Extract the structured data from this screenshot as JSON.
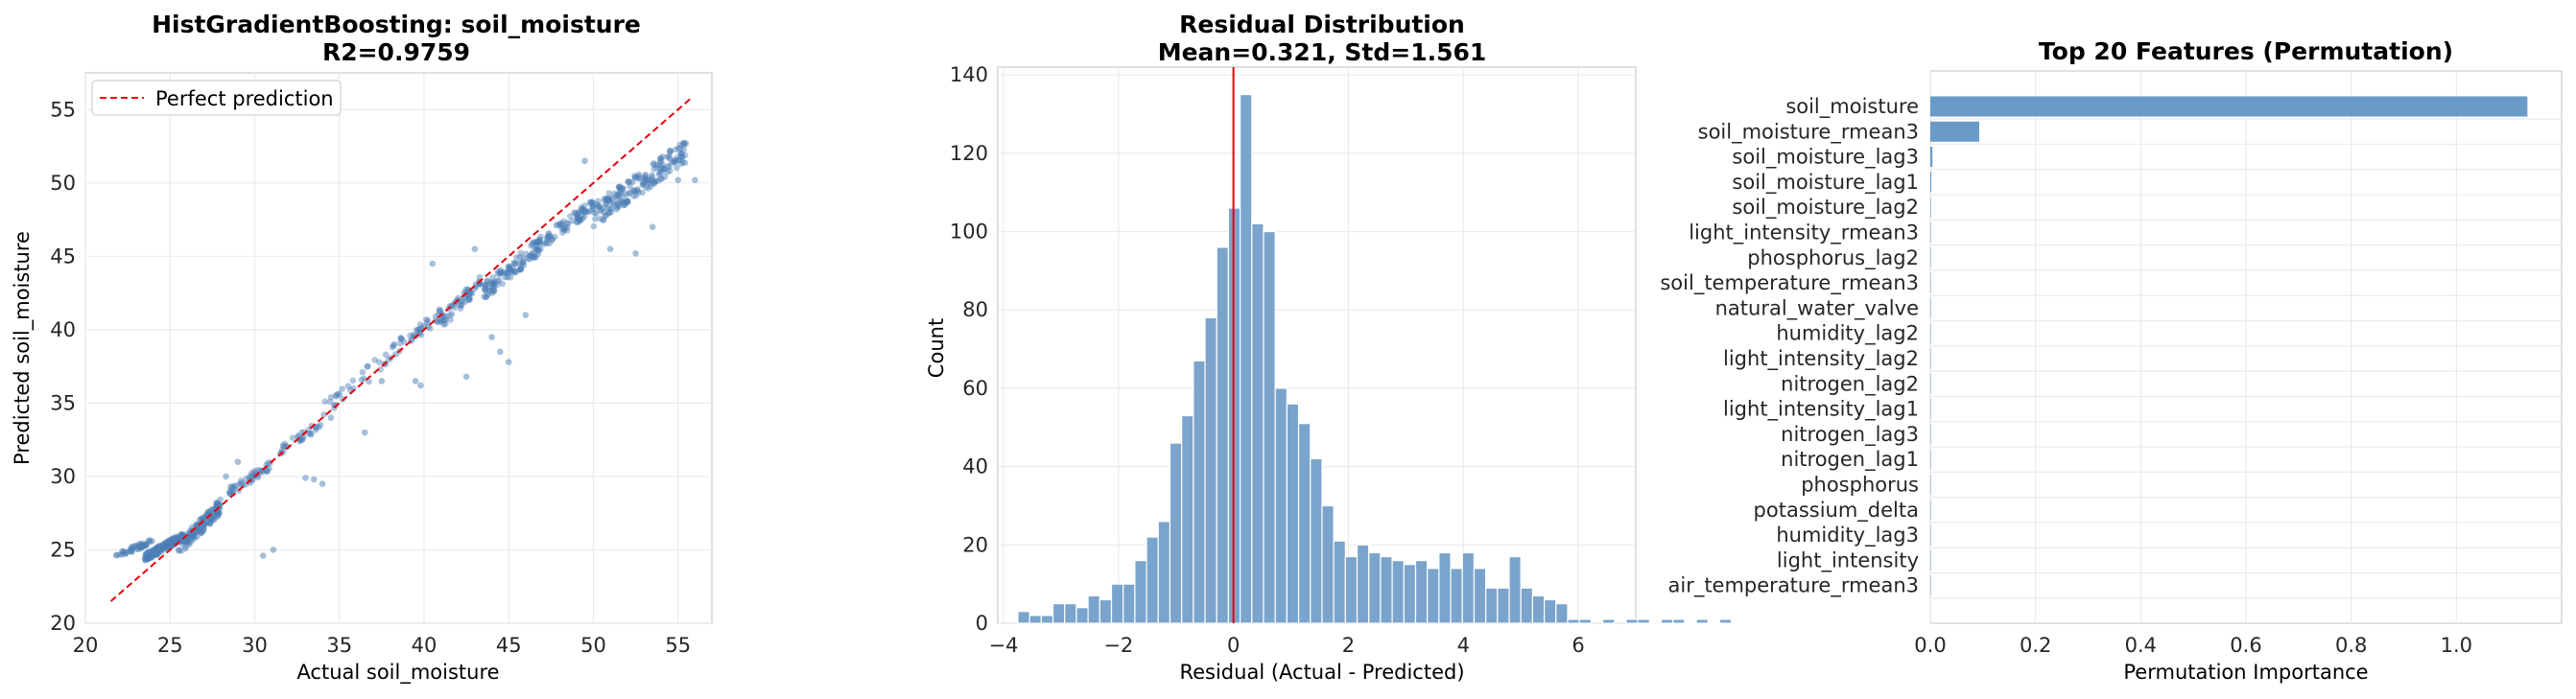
{
  "chart_data": [
    {
      "type": "scatter",
      "title": "HistGradientBoosting: soil_moisture\nR2=0.9759",
      "xlabel": "Actual soil_moisture",
      "ylabel": "Predicted soil_moisture",
      "xlim": [
        20,
        57
      ],
      "ylim": [
        20,
        57.5
      ],
      "xticks": [
        "20",
        "25",
        "30",
        "35",
        "40",
        "45",
        "50",
        "55"
      ],
      "yticks": [
        "20",
        "25",
        "30",
        "35",
        "40",
        "45",
        "50",
        "55"
      ],
      "grid": true,
      "legend": {
        "placement": "top-left",
        "entries": [
          "Perfect prediction"
        ]
      },
      "reference_line": {
        "name": "Perfect prediction",
        "from": [
          21.5,
          21.5
        ],
        "to": [
          55.8,
          55.8
        ],
        "style": "dashed",
        "color": "#e8000b"
      },
      "clusters": [
        {
          "x": [
            21.8,
            24.0
          ],
          "y": [
            24.4,
            25.8
          ],
          "n": 45
        },
        {
          "x": [
            23.5,
            25.8
          ],
          "y": [
            24.2,
            26.2
          ],
          "n": 160
        },
        {
          "x": [
            25.5,
            28.0
          ],
          "y": [
            24.6,
            28.5
          ],
          "n": 130
        },
        {
          "x": [
            28.5,
            31.0
          ],
          "y": [
            28.6,
            31.2
          ],
          "n": 45
        },
        {
          "x": [
            31.5,
            34.0
          ],
          "y": [
            31.5,
            34.0
          ],
          "n": 30
        },
        {
          "x": [
            34.0,
            38.0
          ],
          "y": [
            34.0,
            38.8
          ],
          "n": 30
        },
        {
          "x": [
            38.0,
            41.0
          ],
          "y": [
            38.0,
            41.5
          ],
          "n": 40
        },
        {
          "x": [
            41.0,
            43.5
          ],
          "y": [
            40.0,
            44.0
          ],
          "n": 55
        },
        {
          "x": [
            43.5,
            47.0
          ],
          "y": [
            42.0,
            46.5
          ],
          "n": 110
        },
        {
          "x": [
            47.0,
            50.0
          ],
          "y": [
            45.5,
            49.0
          ],
          "n": 70
        },
        {
          "x": [
            50.0,
            55.5
          ],
          "y": [
            47.0,
            53.0
          ],
          "n": 180
        }
      ],
      "outliers": [
        [
          30.5,
          24.6
        ],
        [
          31.1,
          25.0
        ],
        [
          33.5,
          29.8
        ],
        [
          34.0,
          29.5
        ],
        [
          33.0,
          29.9
        ],
        [
          39.5,
          36.5
        ],
        [
          39.8,
          36.2
        ],
        [
          42.5,
          36.8
        ],
        [
          44.5,
          38.5
        ],
        [
          45.0,
          37.8
        ],
        [
          44.0,
          39.5
        ],
        [
          36.5,
          33.0
        ],
        [
          40.5,
          44.5
        ],
        [
          49.5,
          51.5
        ],
        [
          55.0,
          50.2
        ],
        [
          56.0,
          50.2
        ],
        [
          53.5,
          47.0
        ],
        [
          52.5,
          45.2
        ],
        [
          51.0,
          45.5
        ],
        [
          46.0,
          41.0
        ],
        [
          43.0,
          45.5
        ],
        [
          34.5,
          34.0
        ],
        [
          37.5,
          36.5
        ],
        [
          28.3,
          30.0
        ],
        [
          29.0,
          31.0
        ]
      ],
      "color": "#4c7fb5"
    },
    {
      "type": "bar",
      "subtype": "histogram",
      "title": "Residual Distribution\nMean=0.321, Std=1.561",
      "xlabel": "Residual (Actual - Predicted)",
      "ylabel": "Count",
      "xlim": [
        -4.1,
        7.0
      ],
      "ylim": [
        0,
        142
      ],
      "xticks": [
        "−4",
        "−2",
        "0",
        "2",
        "4",
        "6"
      ],
      "yticks": [
        "0",
        "20",
        "40",
        "60",
        "80",
        "100",
        "120",
        "140"
      ],
      "grid": true,
      "bin_start": -3.75,
      "bin_width": 0.2035,
      "values": [
        3,
        2,
        2,
        5,
        5,
        4,
        7,
        6,
        10,
        10,
        16,
        22,
        26,
        46,
        53,
        67,
        78,
        96,
        106,
        135,
        102,
        100,
        60,
        56,
        51,
        42,
        30,
        21,
        17,
        20,
        18,
        17,
        16,
        15,
        16,
        14,
        18,
        14,
        18,
        14,
        9,
        9,
        17,
        9,
        7,
        6,
        5,
        1,
        1,
        0,
        1,
        0,
        1,
        1,
        0,
        1,
        1,
        0,
        1,
        0,
        1
      ],
      "vline": {
        "x": 0,
        "color": "#e8000b"
      },
      "color": "#7aa4cc"
    },
    {
      "type": "bar",
      "subtype": "horizontal",
      "title": "Top 20 Features (Permutation)",
      "xlabel": "Permutation Importance",
      "ylabel": "",
      "xlim": [
        0,
        1.2
      ],
      "xticks": [
        "0.0",
        "0.2",
        "0.4",
        "0.6",
        "0.8",
        "1.0"
      ],
      "grid": true,
      "categories": [
        "soil_moisture",
        "soil_moisture_rmean3",
        "soil_moisture_lag3",
        "soil_moisture_lag1",
        "soil_moisture_lag2",
        "light_intensity_rmean3",
        "phosphorus_lag2",
        "soil_temperature_rmean3",
        "natural_water_valve",
        "humidity_lag2",
        "light_intensity_lag2",
        "nitrogen_lag2",
        "light_intensity_lag1",
        "nitrogen_lag3",
        "nitrogen_lag1",
        "phosphorus",
        "potassium_delta",
        "humidity_lag3",
        "light_intensity",
        "air_temperature_rmean3"
      ],
      "values": [
        1.135,
        0.093,
        0.004,
        0.002,
        0.001,
        0.0,
        0.0,
        0.0,
        0.0,
        0.0,
        0.0,
        0.0,
        0.0,
        0.0,
        0.0,
        0.0,
        0.0,
        0.0,
        0.0,
        0.0
      ],
      "color": "#6a9bc8"
    }
  ]
}
